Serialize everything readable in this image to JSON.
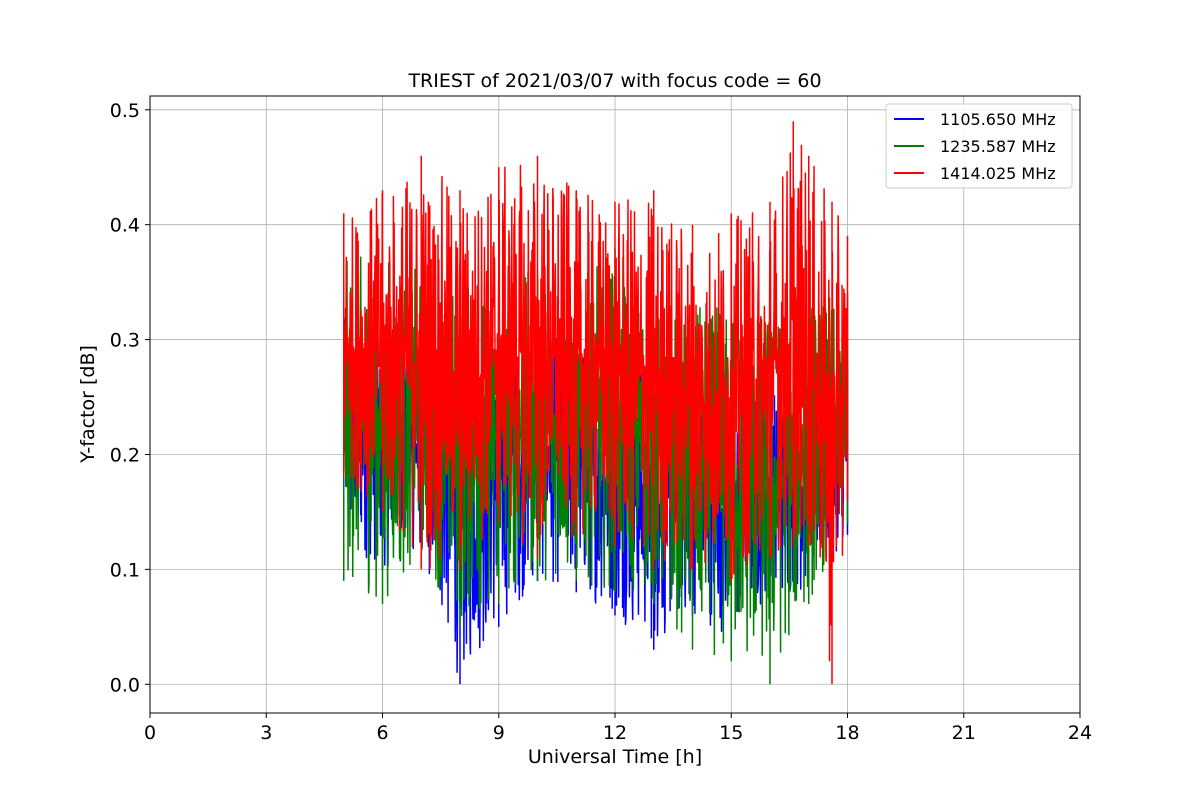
{
  "chart_data": {
    "type": "line",
    "title": "TRIEST of 2021/03/07 with focus code = 60",
    "xlabel": "Universal Time [h]",
    "ylabel": "Y-factor [dB]",
    "xlim": [
      0,
      24
    ],
    "ylim": [
      -0.025,
      0.512
    ],
    "xticks": [
      0,
      3,
      6,
      9,
      12,
      15,
      18,
      21,
      24
    ],
    "yticks": [
      0.0,
      0.1,
      0.2,
      0.3,
      0.4,
      0.5
    ],
    "grid": true,
    "legend_position": "top-right",
    "x_start": 5.0,
    "x_end": 18.0,
    "series": [
      {
        "name": "1105.650 MHz",
        "color": "#0000ff",
        "envelope": [
          {
            "x": 5.0,
            "min": 0.12,
            "max": 0.32
          },
          {
            "x": 6.0,
            "min": 0.1,
            "max": 0.3
          },
          {
            "x": 7.0,
            "min": 0.11,
            "max": 0.3
          },
          {
            "x": 8.0,
            "min": 0.0,
            "max": 0.3
          },
          {
            "x": 9.0,
            "min": 0.05,
            "max": 0.3
          },
          {
            "x": 10.0,
            "min": 0.09,
            "max": 0.31
          },
          {
            "x": 11.0,
            "min": 0.08,
            "max": 0.3
          },
          {
            "x": 12.0,
            "min": 0.06,
            "max": 0.28
          },
          {
            "x": 13.0,
            "min": 0.03,
            "max": 0.28
          },
          {
            "x": 14.0,
            "min": 0.06,
            "max": 0.26
          },
          {
            "x": 15.0,
            "min": 0.04,
            "max": 0.26
          },
          {
            "x": 16.0,
            "min": 0.07,
            "max": 0.26
          },
          {
            "x": 17.0,
            "min": 0.08,
            "max": 0.27
          },
          {
            "x": 18.0,
            "min": 0.13,
            "max": 0.28
          }
        ]
      },
      {
        "name": "1235.587 MHz",
        "color": "#008000",
        "envelope": [
          {
            "x": 5.0,
            "min": 0.09,
            "max": 0.37
          },
          {
            "x": 6.0,
            "min": 0.07,
            "max": 0.38
          },
          {
            "x": 7.0,
            "min": 0.11,
            "max": 0.36
          },
          {
            "x": 8.0,
            "min": 0.05,
            "max": 0.35
          },
          {
            "x": 9.0,
            "min": 0.07,
            "max": 0.36
          },
          {
            "x": 10.0,
            "min": 0.09,
            "max": 0.36
          },
          {
            "x": 11.0,
            "min": 0.09,
            "max": 0.35
          },
          {
            "x": 12.0,
            "min": 0.08,
            "max": 0.38
          },
          {
            "x": 13.0,
            "min": 0.07,
            "max": 0.34
          },
          {
            "x": 14.0,
            "min": 0.03,
            "max": 0.33
          },
          {
            "x": 15.0,
            "min": 0.02,
            "max": 0.33
          },
          {
            "x": 16.0,
            "min": 0.0,
            "max": 0.33
          },
          {
            "x": 17.0,
            "min": 0.07,
            "max": 0.34
          },
          {
            "x": 18.0,
            "min": 0.14,
            "max": 0.34
          }
        ]
      },
      {
        "name": "1414.025 MHz",
        "color": "#ff0000",
        "envelope": [
          {
            "x": 5.0,
            "min": 0.18,
            "max": 0.41
          },
          {
            "x": 6.0,
            "min": 0.15,
            "max": 0.43
          },
          {
            "x": 7.0,
            "min": 0.1,
            "max": 0.46
          },
          {
            "x": 8.0,
            "min": 0.1,
            "max": 0.43
          },
          {
            "x": 9.0,
            "min": 0.14,
            "max": 0.45
          },
          {
            "x": 10.0,
            "min": 0.11,
            "max": 0.46
          },
          {
            "x": 11.0,
            "min": 0.13,
            "max": 0.43
          },
          {
            "x": 12.0,
            "min": 0.12,
            "max": 0.42
          },
          {
            "x": 13.0,
            "min": 0.1,
            "max": 0.43
          },
          {
            "x": 14.0,
            "min": 0.1,
            "max": 0.4
          },
          {
            "x": 15.0,
            "min": 0.09,
            "max": 0.41
          },
          {
            "x": 16.0,
            "min": 0.11,
            "max": 0.42
          },
          {
            "x": 16.6,
            "min": 0.12,
            "max": 0.49
          },
          {
            "x": 17.0,
            "min": 0.12,
            "max": 0.46
          },
          {
            "x": 17.6,
            "min": 0.0,
            "max": 0.42
          },
          {
            "x": 18.0,
            "min": 0.16,
            "max": 0.39
          }
        ]
      }
    ]
  }
}
